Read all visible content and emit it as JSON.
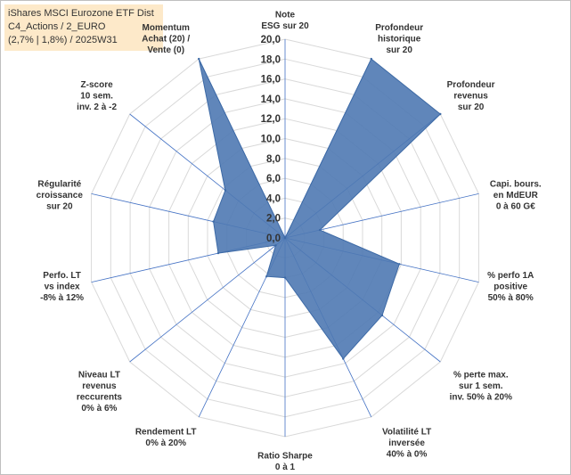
{
  "header": {
    "lines": [
      "iShares MSCI Eurozone ETF Dist",
      "C4_Actions / 2_EURO",
      "(2,7% | 1,8%) / 2025W31"
    ]
  },
  "colors": {
    "fill": "#4f79b3",
    "stroke": "#3d6aa6",
    "grid": "#d9d9d9",
    "spoke": "#4472c4"
  },
  "chart_data": {
    "type": "radar",
    "r_range": [
      0,
      20
    ],
    "tick_labels": [
      "0,0",
      "2,0",
      "4,0",
      "6,0",
      "8,0",
      "10,0",
      "12,0",
      "14,0",
      "16,0",
      "18,0",
      "20,0"
    ],
    "tick_values": [
      0,
      2,
      4,
      6,
      8,
      10,
      12,
      14,
      16,
      18,
      20
    ],
    "grid": true,
    "axes": [
      [
        "Note",
        "ESG sur 20"
      ],
      [
        "Profondeur",
        "historique",
        "sur 20"
      ],
      [
        "Profondeur",
        "revenus",
        "sur 20"
      ],
      [
        "Capi. bours.",
        "en MdEUR",
        "0 à 60 G€"
      ],
      [
        "% perfo 1A",
        "positive",
        "50% à 80%"
      ],
      [
        "% perte max.",
        "sur 1 sem.",
        "inv. 50% à 20%"
      ],
      [
        "Volatilité LT",
        "inversée",
        "40% à 0%"
      ],
      [
        "Ratio Sharpe",
        "0 à 1"
      ],
      [
        "Rendement LT",
        "0% à 20%"
      ],
      [
        "Niveau LT",
        "revenus",
        "reccurents",
        "0% à 6%"
      ],
      [
        "Perfo. LT",
        "vs index",
        "-8% à 12%"
      ],
      [
        "Régularité",
        "croissance",
        "sur 20"
      ],
      [
        "Z-score",
        "10 sem.",
        "inv. 2 à -2"
      ],
      [
        "Momentum",
        "Achat (20) /",
        "Vente (0)"
      ]
    ],
    "values": [
      0.0,
      20.0,
      20.0,
      3.6,
      11.8,
      12.5,
      13.5,
      4.0,
      4.3,
      1.2,
      6.9,
      7.4,
      7.7,
      20.0
    ]
  }
}
